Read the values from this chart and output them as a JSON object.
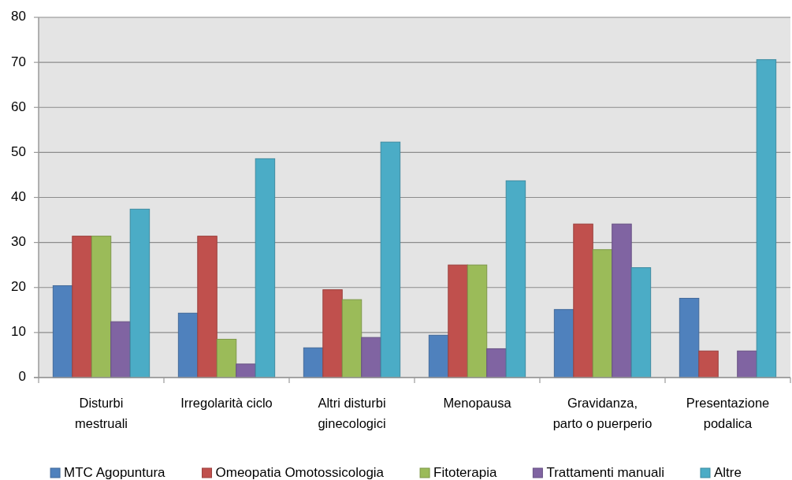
{
  "chart_data": {
    "type": "bar",
    "categories": [
      "Disturbi\nmestruali",
      "Irregolarità ciclo",
      "Altri disturbi\nginecologici",
      "Menopausa",
      "Gravidanza,\nparto o puerperio",
      "Presentazione\npodalica"
    ],
    "series": [
      {
        "name": "MTC Agopuntura",
        "color": "#4f81bd",
        "values": [
          20.4,
          14.3,
          6.6,
          9.4,
          15.1,
          17.6
        ]
      },
      {
        "name": "Omeopatia Omotossicologia",
        "color": "#c0504d",
        "values": [
          31.4,
          31.4,
          19.5,
          25.0,
          34.1,
          5.9
        ]
      },
      {
        "name": "Fitoterapia",
        "color": "#9bbb59",
        "values": [
          31.4,
          8.5,
          17.3,
          25.0,
          28.4,
          null
        ]
      },
      {
        "name": "Trattamenti manuali",
        "color": "#8064a2",
        "values": [
          12.4,
          3.0,
          8.9,
          6.4,
          34.1,
          5.9
        ]
      },
      {
        "name": "Altre",
        "color": "#4bacc6",
        "values": [
          37.4,
          48.6,
          52.3,
          43.7,
          24.4,
          70.6
        ]
      }
    ],
    "ylim": [
      0,
      80
    ],
    "yticks": [
      0,
      10,
      20,
      30,
      40,
      50,
      60,
      70,
      80
    ],
    "grid": "y",
    "legend": "bottom"
  }
}
